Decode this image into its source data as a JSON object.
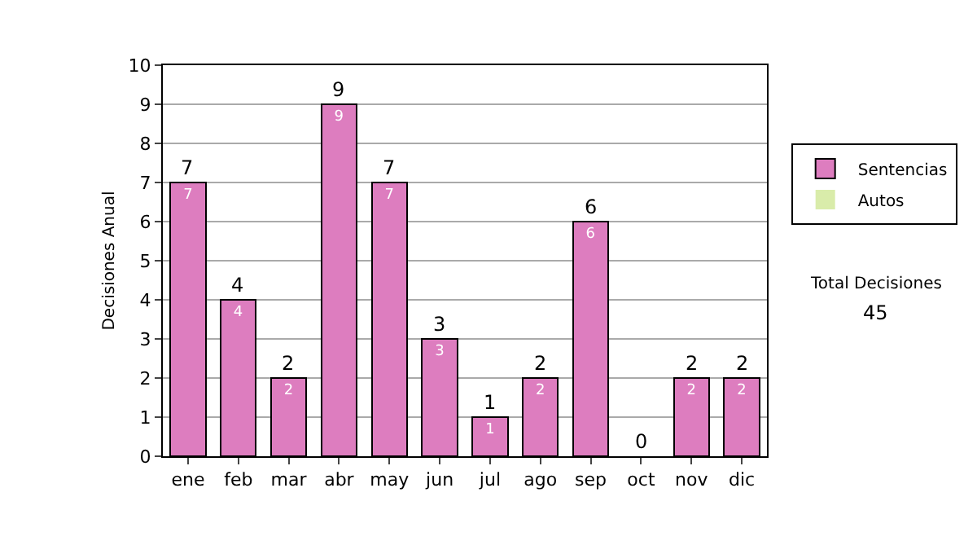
{
  "chart_data": {
    "type": "bar",
    "stacked": true,
    "ylabel": "Decisiones Anual",
    "categories": [
      "ene",
      "feb",
      "mar",
      "abr",
      "may",
      "jun",
      "jul",
      "ago",
      "sep",
      "oct",
      "nov",
      "dic"
    ],
    "series": [
      {
        "name": "Sentencias",
        "color": "#dd7dbf",
        "values": [
          7,
          4,
          2,
          9,
          7,
          3,
          1,
          2,
          6,
          0,
          2,
          2
        ],
        "value_labels": [
          "7",
          "4",
          "2",
          "9",
          "7",
          "3",
          "1",
          "2",
          "6",
          null,
          "2",
          "2"
        ]
      },
      {
        "name": "Autos",
        "color": "#d9ecaa",
        "values": [
          0,
          0,
          0,
          0,
          0,
          0,
          0,
          0,
          0,
          0,
          0,
          0
        ]
      }
    ],
    "totals": [
      "7",
      "4",
      "2",
      "9",
      "7",
      "3",
      "1",
      "2",
      "6",
      "0",
      "2",
      "2"
    ],
    "ylim": [
      0,
      10
    ],
    "yticks": [
      0,
      1,
      2,
      3,
      4,
      5,
      6,
      7,
      8,
      9,
      10
    ],
    "grid": "y",
    "legend": "right",
    "annotations": [
      "Total Decisiones",
      "45"
    ]
  }
}
